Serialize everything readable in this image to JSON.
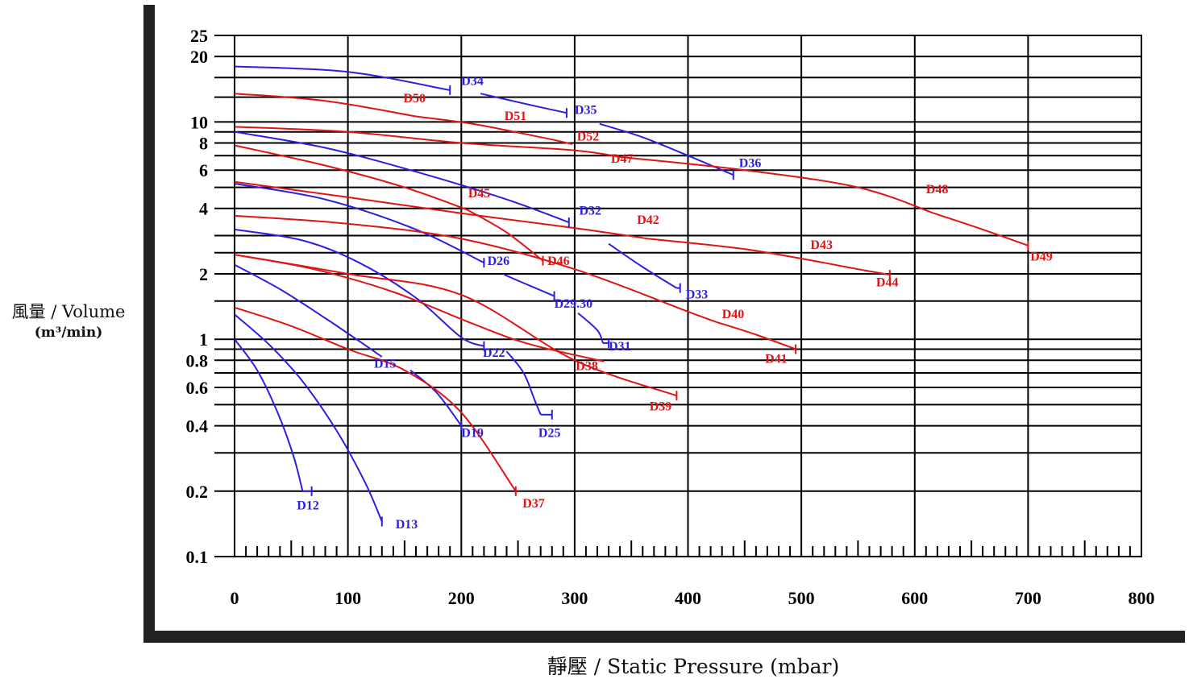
{
  "chart_data": {
    "type": "line",
    "title": "",
    "xlabel": "靜壓 / Static Pressure (mbar)",
    "ylabel": "風量 / Volume",
    "ylabel_unit": "(m³/min)",
    "x_scale": "linear",
    "y_scale": "log",
    "xlim": [
      0,
      800
    ],
    "ylim": [
      0.1,
      25
    ],
    "grid": true,
    "x_ticks": [
      0,
      100,
      200,
      300,
      400,
      500,
      600,
      700,
      800
    ],
    "x_tick_labels": [
      "0",
      "100",
      "200",
      "300",
      "400",
      "500",
      "600",
      "700",
      "800"
    ],
    "y_ticks": [
      0.1,
      0.2,
      0.4,
      0.6,
      0.8,
      1,
      2,
      4,
      6,
      8,
      10,
      20,
      25
    ],
    "y_tick_labels": [
      "0.1",
      "0.2",
      "0.4",
      "0.6",
      "0.8",
      "1",
      "2",
      "4",
      "6",
      "8",
      "10",
      "20",
      "25"
    ],
    "y_gridlines": [
      0.2,
      0.3,
      0.4,
      0.5,
      0.6,
      0.7,
      0.8,
      0.9,
      1.0,
      1.5,
      2.0,
      2.5,
      3.0,
      4.0,
      5.0,
      6.0,
      7.0,
      8.0,
      9.0,
      10.0,
      13.0,
      16.0,
      20.0,
      25.0
    ],
    "colors": {
      "blue": "#2c1fe0",
      "red": "#e01414"
    },
    "series": [
      {
        "name": "D12",
        "color": "#2c1fe0",
        "points": [
          [
            0,
            1.0
          ],
          [
            20,
            0.72
          ],
          [
            38,
            0.46
          ],
          [
            52,
            0.29
          ],
          [
            60,
            0.2
          ]
        ],
        "end_x": 68,
        "label": {
          "text": "D12",
          "x": 55,
          "y": 0.165
        }
      },
      {
        "name": "D13",
        "color": "#2c1fe0",
        "points": [
          [
            0,
            1.3
          ],
          [
            30,
            0.95
          ],
          [
            60,
            0.64
          ],
          [
            90,
            0.38
          ],
          [
            115,
            0.22
          ],
          [
            130,
            0.145
          ]
        ],
        "end_x": 130,
        "label": {
          "text": "D13",
          "x": 142,
          "y": 0.135
        }
      },
      {
        "name": "D15",
        "color": "#2c1fe0",
        "points": [
          [
            0,
            2.2
          ],
          [
            40,
            1.7
          ],
          [
            80,
            1.25
          ],
          [
            110,
            0.98
          ],
          [
            130,
            0.83
          ]
        ],
        "label": {
          "text": "D15",
          "x": 123,
          "y": 0.74
        }
      },
      {
        "name": "D19",
        "color": "#2c1fe0",
        "points": [
          [
            155,
            0.72
          ],
          [
            178,
            0.57
          ],
          [
            200,
            0.4
          ]
        ],
        "end_x": 200,
        "label": {
          "text": "D19",
          "x": 200,
          "y": 0.355
        }
      },
      {
        "name": "D22",
        "color": "#2c1fe0",
        "points": [
          [
            0,
            3.2
          ],
          [
            60,
            2.85
          ],
          [
            110,
            2.25
          ],
          [
            160,
            1.55
          ],
          [
            200,
            1.02
          ],
          [
            220,
            0.93
          ]
        ],
        "end_x": 220,
        "label": {
          "text": "D22",
          "x": 219,
          "y": 0.83
        }
      },
      {
        "name": "D25",
        "color": "#2c1fe0",
        "points": [
          [
            240,
            0.88
          ],
          [
            255,
            0.7
          ],
          [
            265,
            0.52
          ],
          [
            270,
            0.45
          ]
        ],
        "end_x": 280,
        "label": {
          "text": "D25",
          "x": 268,
          "y": 0.355
        }
      },
      {
        "name": "D26",
        "color": "#2c1fe0",
        "points": [
          [
            0,
            5.2
          ],
          [
            80,
            4.4
          ],
          [
            160,
            3.2
          ],
          [
            220,
            2.25
          ]
        ],
        "end_x": 220,
        "label": {
          "text": "D26",
          "x": 223,
          "y": 2.2
        }
      },
      {
        "name": "D29.30",
        "color": "#2c1fe0",
        "points": [
          [
            238,
            1.98
          ],
          [
            262,
            1.75
          ],
          [
            282,
            1.58
          ]
        ],
        "end_x": 282,
        "label": {
          "text": "D29.30",
          "x": 282,
          "y": 1.4
        }
      },
      {
        "name": "D31",
        "color": "#2c1fe0",
        "points": [
          [
            303,
            1.32
          ],
          [
            320,
            1.1
          ],
          [
            325,
            0.96
          ]
        ],
        "end_x": 330,
        "label": {
          "text": "D31",
          "x": 330,
          "y": 0.89
        }
      },
      {
        "name": "D32",
        "color": "#2c1fe0",
        "points": [
          [
            0,
            9.0
          ],
          [
            80,
            7.6
          ],
          [
            160,
            5.9
          ],
          [
            240,
            4.4
          ],
          [
            295,
            3.45
          ]
        ],
        "end_x": 295,
        "label": {
          "text": "D32",
          "x": 304,
          "y": 3.75
        }
      },
      {
        "name": "D33",
        "color": "#2c1fe0",
        "points": [
          [
            330,
            2.75
          ],
          [
            360,
            2.15
          ],
          [
            390,
            1.72
          ]
        ],
        "end_x": 393,
        "label": {
          "text": "D33",
          "x": 398,
          "y": 1.54
        }
      },
      {
        "name": "D34",
        "color": "#2c1fe0",
        "points": [
          [
            0,
            18.0
          ],
          [
            100,
            17.0
          ],
          [
            190,
            14.0
          ]
        ],
        "end_x": 190,
        "label": {
          "text": "D34",
          "x": 200,
          "y": 14.8
        }
      },
      {
        "name": "D35",
        "color": "#2c1fe0",
        "points": [
          [
            217,
            13.5
          ],
          [
            260,
            12.0
          ],
          [
            293,
            11.0
          ]
        ],
        "end_x": 293,
        "label": {
          "text": "D35",
          "x": 300,
          "y": 10.9
        }
      },
      {
        "name": "D36",
        "color": "#2c1fe0",
        "points": [
          [
            322,
            9.8
          ],
          [
            360,
            8.5
          ],
          [
            400,
            7.0
          ],
          [
            440,
            5.7
          ]
        ],
        "end_x": 440,
        "label": {
          "text": "D36",
          "x": 445,
          "y": 6.2
        }
      },
      {
        "name": "D37",
        "color": "#e01414",
        "points": [
          [
            0,
            1.4
          ],
          [
            50,
            1.15
          ],
          [
            100,
            0.9
          ],
          [
            150,
            0.72
          ],
          [
            200,
            0.46
          ],
          [
            248,
            0.2
          ]
        ],
        "end_x": 248,
        "label": {
          "text": "D37",
          "x": 254,
          "y": 0.168
        }
      },
      {
        "name": "D38",
        "color": "#e01414",
        "points": [
          [
            0,
            2.45
          ],
          [
            70,
            2.1
          ],
          [
            140,
            1.65
          ],
          [
            210,
            1.18
          ],
          [
            260,
            0.95
          ],
          [
            326,
            0.79
          ]
        ],
        "label": {
          "text": "D38",
          "x": 301,
          "y": 0.72
        }
      },
      {
        "name": "D39",
        "color": "#e01414",
        "points": [
          [
            0,
            2.45
          ],
          [
            100,
            2.0
          ],
          [
            200,
            1.6
          ],
          [
            300,
            0.8
          ],
          [
            390,
            0.55
          ]
        ],
        "end_x": 390,
        "label": {
          "text": "D39",
          "x": 366,
          "y": 0.47
        }
      },
      {
        "name": "D40",
        "color": "#e01414",
        "points": [
          [
            0,
            3.7
          ],
          [
            100,
            3.4
          ],
          [
            200,
            2.9
          ],
          [
            300,
            2.1
          ],
          [
            400,
            1.34
          ],
          [
            425,
            1.2
          ]
        ],
        "label": {
          "text": "D40",
          "x": 430,
          "y": 1.25
        }
      },
      {
        "name": "D41",
        "color": "#e01414",
        "points": [
          [
            425,
            1.2
          ],
          [
            460,
            1.05
          ],
          [
            495,
            0.9
          ]
        ],
        "end_x": 495,
        "label": {
          "text": "D41",
          "x": 468,
          "y": 0.78
        }
      },
      {
        "name": "D42",
        "color": "#e01414",
        "points": [
          [
            0,
            5.3
          ],
          [
            100,
            4.5
          ],
          [
            200,
            3.8
          ],
          [
            300,
            3.25
          ],
          [
            365,
            2.9
          ]
        ],
        "label": {
          "text": "D42",
          "x": 355,
          "y": 3.4
        }
      },
      {
        "name": "D43",
        "color": "#e01414",
        "points": [
          [
            365,
            2.9
          ],
          [
            450,
            2.6
          ],
          [
            520,
            2.25
          ]
        ],
        "label": {
          "text": "D43",
          "x": 508,
          "y": 2.6
        }
      },
      {
        "name": "D44",
        "color": "#e01414",
        "points": [
          [
            520,
            2.25
          ],
          [
            550,
            2.1
          ],
          [
            578,
            1.98
          ]
        ],
        "end_x": 578,
        "label": {
          "text": "D44",
          "x": 566,
          "y": 1.75
        }
      },
      {
        "name": "D45",
        "color": "#e01414",
        "points": [
          [
            0,
            7.8
          ],
          [
            80,
            6.3
          ],
          [
            150,
            5.0
          ],
          [
            205,
            3.95
          ]
        ],
        "label": {
          "text": "D45",
          "x": 206,
          "y": 4.5
        }
      },
      {
        "name": "D46",
        "color": "#e01414",
        "points": [
          [
            205,
            3.95
          ],
          [
            240,
            3.1
          ],
          [
            272,
            2.3
          ]
        ],
        "end_x": 272,
        "label": {
          "text": "D46",
          "x": 276,
          "y": 2.2
        }
      },
      {
        "name": "D47",
        "color": "#e01414",
        "points": [
          [
            0,
            9.5
          ],
          [
            100,
            9.0
          ],
          [
            200,
            8.0
          ],
          [
            300,
            7.4
          ],
          [
            340,
            6.9
          ]
        ],
        "label": {
          "text": "D47",
          "x": 332,
          "y": 6.5
        }
      },
      {
        "name": "D48",
        "color": "#e01414",
        "points": [
          [
            340,
            6.9
          ],
          [
            450,
            6.0
          ],
          [
            550,
            5.0
          ],
          [
            617,
            3.8
          ]
        ],
        "label": {
          "text": "D48",
          "x": 610,
          "y": 4.7
        }
      },
      {
        "name": "D49",
        "color": "#e01414",
        "points": [
          [
            617,
            3.8
          ],
          [
            660,
            3.2
          ],
          [
            700,
            2.7
          ]
        ],
        "end_x": 700,
        "label": {
          "text": "D49",
          "x": 702,
          "y": 2.3
        }
      },
      {
        "name": "D50",
        "color": "#e01414",
        "points": [
          [
            0,
            13.5
          ],
          [
            80,
            12.5
          ],
          [
            160,
            10.6
          ]
        ],
        "label": {
          "text": "D50",
          "x": 149,
          "y": 12.3
        }
      },
      {
        "name": "D51",
        "color": "#e01414",
        "points": [
          [
            160,
            10.6
          ],
          [
            210,
            9.8
          ],
          [
            247,
            9.0
          ]
        ],
        "label": {
          "text": "D51",
          "x": 238,
          "y": 10.2
        }
      },
      {
        "name": "D52",
        "color": "#e01414",
        "points": [
          [
            247,
            9.0
          ],
          [
            280,
            8.3
          ],
          [
            298,
            7.9
          ]
        ],
        "label": {
          "text": "D52",
          "x": 302,
          "y": 8.2
        }
      }
    ]
  }
}
